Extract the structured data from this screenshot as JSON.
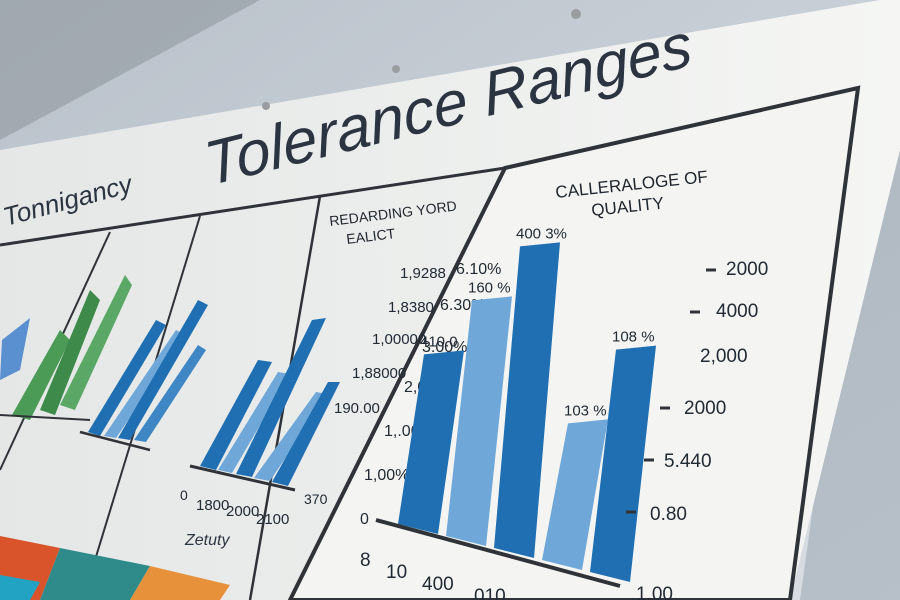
{
  "board": {
    "title": "Tolerance Ranges",
    "left_heading": "Tonnigancy"
  },
  "panels": [
    {
      "caption": "Zetuty",
      "ticks": [
        "1800",
        "2000",
        "2100"
      ]
    },
    {
      "heading_line1": "REDARDING YORD",
      "heading_line2": "EALICT",
      "side_labels": [
        "1,9288",
        "1,8380",
        "1,00000",
        "1,88000",
        "190.00"
      ],
      "bottom_labels": [
        "0",
        "1800",
        "2000",
        "2100",
        "370"
      ]
    }
  ],
  "main_chart": {
    "heading_line1": "CALLERALOGE OF",
    "heading_line2": "QUALITY",
    "left_axis": [
      "6.10%",
      "6.30%",
      "3.00%",
      "2,00%",
      "1,.00%",
      "1,00%",
      "0"
    ],
    "right_axis": [
      "2000",
      "4000",
      "2,000",
      "2000",
      "5.440",
      "0.80",
      "1.00"
    ],
    "bar_labels": [
      "410.0",
      "160 %",
      "400 3%",
      "103 %",
      "108 %"
    ],
    "bottom_labels": [
      "8",
      "10",
      "400",
      "010"
    ],
    "bar_levels": [
      0.52,
      0.72,
      0.92,
      0.42,
      0.68
    ]
  },
  "colors": {
    "board": "#eef0ee",
    "wall": "#c9d0d8",
    "dark_blue": "#1f6fb2",
    "light_blue": "#6fa8d8",
    "green": "#4b9a56",
    "frame": "#2f3338"
  }
}
